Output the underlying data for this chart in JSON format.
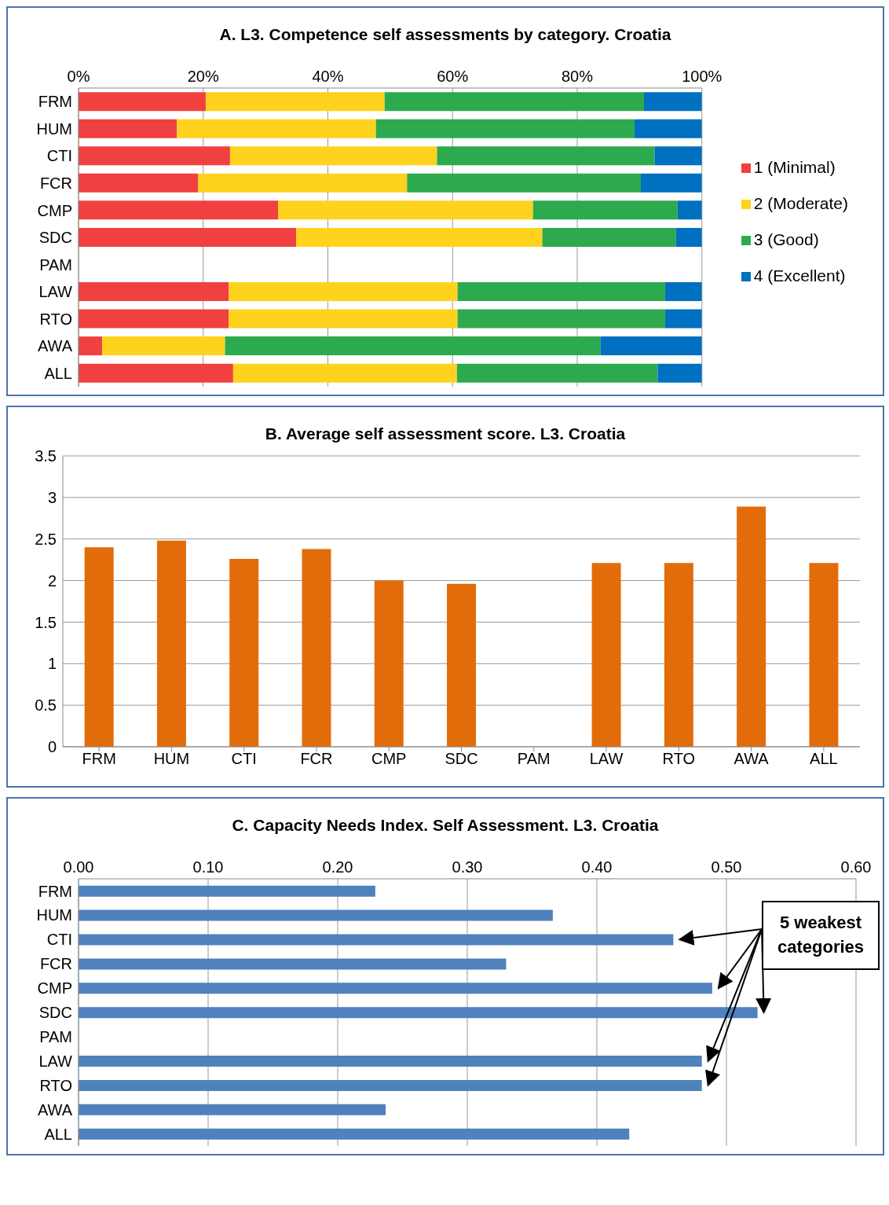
{
  "chart_data": [
    {
      "type": "bar",
      "title": "A. L3. Competence self assessments by category. Croatia",
      "orientation": "horizontal",
      "stacked": true,
      "categories": [
        "FRM",
        "HUM",
        "CTI",
        "FCR",
        "CMP",
        "SDC",
        "PAM",
        "LAW",
        "RTO",
        "AWA",
        "ALL"
      ],
      "series": [
        {
          "name": "1 (Minimal)",
          "color": "#f04040",
          "values": [
            20.4,
            15.8,
            24.3,
            19.2,
            32.0,
            34.9,
            null,
            24.1,
            24.1,
            3.8,
            24.8
          ]
        },
        {
          "name": "2 (Moderate)",
          "color": "#ffd21e",
          "values": [
            28.7,
            31.9,
            33.2,
            33.5,
            40.9,
            39.5,
            null,
            36.7,
            36.7,
            19.7,
            35.9
          ]
        },
        {
          "name": "3 (Good)",
          "color": "#2eaa4e",
          "values": [
            41.6,
            41.5,
            34.9,
            37.5,
            23.2,
            21.4,
            null,
            33.3,
            33.3,
            60.2,
            32.2
          ]
        },
        {
          "name": "4 (Excellent)",
          "color": "#0070c0",
          "values": [
            9.3,
            10.8,
            7.6,
            9.8,
            3.9,
            4.2,
            null,
            5.9,
            5.9,
            16.3,
            7.1
          ]
        }
      ],
      "xlim": [
        0,
        100
      ],
      "xticks": [
        {
          "value": 0,
          "label": "0%"
        },
        {
          "value": 20,
          "label": "20%"
        },
        {
          "value": 40,
          "label": "40%"
        },
        {
          "value": 60,
          "label": "60%"
        },
        {
          "value": 80,
          "label": "80%"
        },
        {
          "value": 100,
          "label": "100%"
        }
      ],
      "grid": "x",
      "legend": "right"
    },
    {
      "type": "bar",
      "title": "B. Average self assessment score. L3. Croatia",
      "categories": [
        "FRM",
        "HUM",
        "CTI",
        "FCR",
        "CMP",
        "SDC",
        "PAM",
        "LAW",
        "RTO",
        "AWA",
        "ALL"
      ],
      "values": [
        2.4,
        2.48,
        2.26,
        2.38,
        2.0,
        1.96,
        null,
        2.21,
        2.21,
        2.89,
        2.21
      ],
      "color": "#e36c0a",
      "ylim": [
        0,
        3.5
      ],
      "yticks": [
        0,
        0.5,
        1,
        1.5,
        2,
        2.5,
        3,
        3.5
      ],
      "grid": "y"
    },
    {
      "type": "bar",
      "title": "C. Capacity Needs Index.  Self Assessment. L3. Croatia",
      "orientation": "horizontal",
      "categories": [
        "FRM",
        "HUM",
        "CTI",
        "FCR",
        "CMP",
        "SDC",
        "PAM",
        "LAW",
        "RTO",
        "AWA",
        "ALL"
      ],
      "values": [
        0.229,
        0.366,
        0.459,
        0.33,
        0.489,
        0.524,
        null,
        0.481,
        0.481,
        0.237,
        0.425
      ],
      "color": "#4f81bd",
      "xlim": [
        0,
        0.6
      ],
      "xticks": [
        {
          "value": 0,
          "label": "0.00"
        },
        {
          "value": 0.1,
          "label": "0.10"
        },
        {
          "value": 0.2,
          "label": "0.20"
        },
        {
          "value": 0.3,
          "label": "0.30"
        },
        {
          "value": 0.4,
          "label": "0.40"
        },
        {
          "value": 0.5,
          "label": "0.50"
        },
        {
          "value": 0.6,
          "label": "0.60"
        }
      ],
      "grid": "x",
      "annotations": [
        "5 weakest categories"
      ]
    }
  ]
}
